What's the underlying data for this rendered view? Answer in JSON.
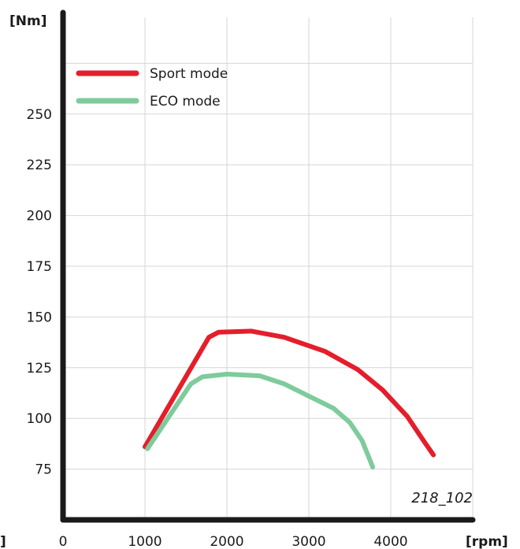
{
  "chart_data": {
    "type": "line",
    "y_unit_label": "[Nm]",
    "x_unit_label": "[rpm]",
    "x_left_edge_label": "]",
    "figure_id": "218_102",
    "xlim": [
      0,
      5000
    ],
    "ylim": [
      50,
      300
    ],
    "x_ticks": [
      0,
      1000,
      2000,
      3000,
      4000
    ],
    "y_ticks": [
      75,
      100,
      125,
      150,
      175,
      200,
      225,
      250
    ],
    "grid": true,
    "legend_position": "top-left",
    "series": [
      {
        "name": "Sport mode",
        "color": "#e41e2b",
        "points": [
          [
            1000,
            86
          ],
          [
            1780,
            140
          ],
          [
            1900,
            142.5
          ],
          [
            2300,
            143
          ],
          [
            2700,
            140
          ],
          [
            3200,
            133
          ],
          [
            3600,
            124
          ],
          [
            3900,
            114
          ],
          [
            4200,
            101
          ],
          [
            4400,
            89
          ],
          [
            4520,
            82
          ]
        ]
      },
      {
        "name": "ECO mode",
        "color": "#7ecb9c",
        "points": [
          [
            1030,
            85
          ],
          [
            1560,
            117
          ],
          [
            1700,
            120.5
          ],
          [
            2000,
            121.8
          ],
          [
            2400,
            121
          ],
          [
            2700,
            117
          ],
          [
            3000,
            111
          ],
          [
            3300,
            105
          ],
          [
            3500,
            98
          ],
          [
            3650,
            89
          ],
          [
            3740,
            80
          ],
          [
            3780,
            76
          ]
        ]
      }
    ]
  }
}
